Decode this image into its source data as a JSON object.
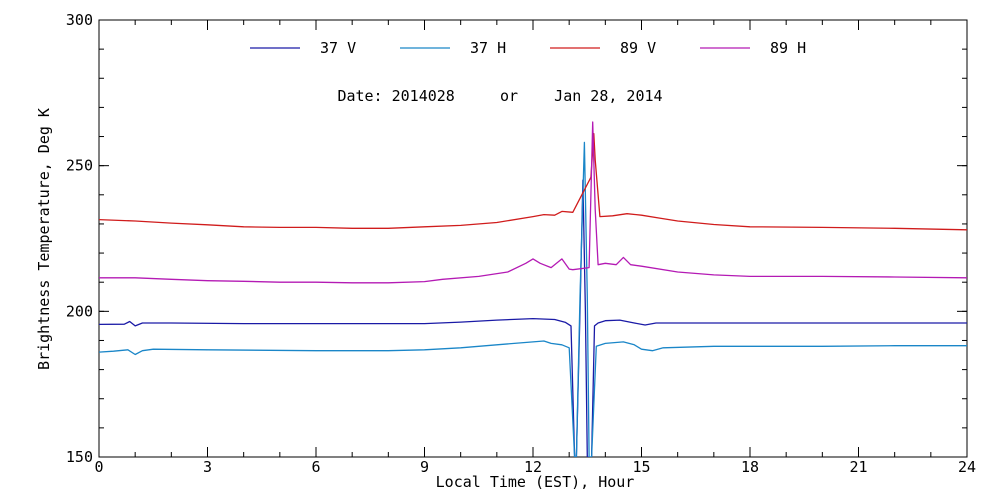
{
  "chart_data": {
    "type": "line",
    "title": "Date: 2014028     or    Jan 28, 2014",
    "xlabel": "Local Time (EST), Hour",
    "ylabel": "Brightness Temperature, Deg K",
    "xlim": [
      0,
      24
    ],
    "ylim": [
      150,
      300
    ],
    "xticks": [
      0,
      3,
      6,
      9,
      12,
      15,
      18,
      21,
      24
    ],
    "yticks": [
      150,
      200,
      250,
      300
    ],
    "x_minor_step": 1,
    "y_minor_step": 10,
    "grid": false,
    "legend_position": "top",
    "series": [
      {
        "name": "37 V",
        "color": "#1a1aa6",
        "points": [
          [
            0,
            195.5
          ],
          [
            0.7,
            195.6
          ],
          [
            0.85,
            196.5
          ],
          [
            1.0,
            195.0
          ],
          [
            1.2,
            196.0
          ],
          [
            2,
            196.0
          ],
          [
            4,
            195.8
          ],
          [
            6,
            195.8
          ],
          [
            8,
            195.8
          ],
          [
            9,
            195.8
          ],
          [
            10,
            196.3
          ],
          [
            11,
            197.0
          ],
          [
            12,
            197.5
          ],
          [
            12.6,
            197.2
          ],
          [
            12.9,
            196.2
          ],
          [
            13.05,
            195.0
          ],
          [
            13.15,
            150
          ],
          [
            13.2,
            150
          ],
          [
            13.3,
            200
          ],
          [
            13.38,
            245
          ],
          [
            13.45,
            200
          ],
          [
            13.5,
            150
          ],
          [
            13.62,
            150
          ],
          [
            13.7,
            195.0
          ],
          [
            13.8,
            196.0
          ],
          [
            14.0,
            196.8
          ],
          [
            14.4,
            197.0
          ],
          [
            14.8,
            196.0
          ],
          [
            15.1,
            195.3
          ],
          [
            15.4,
            196.0
          ],
          [
            16,
            196.0
          ],
          [
            18,
            196.0
          ],
          [
            20,
            196.0
          ],
          [
            22,
            196.0
          ],
          [
            24,
            196.0
          ]
        ]
      },
      {
        "name": "37 H",
        "color": "#1a86c8",
        "points": [
          [
            0,
            186.0
          ],
          [
            0.4,
            186.3
          ],
          [
            0.8,
            186.8
          ],
          [
            1.0,
            185.2
          ],
          [
            1.2,
            186.5
          ],
          [
            1.5,
            187.0
          ],
          [
            3,
            186.8
          ],
          [
            6,
            186.5
          ],
          [
            8,
            186.5
          ],
          [
            9,
            186.8
          ],
          [
            10,
            187.5
          ],
          [
            11,
            188.5
          ],
          [
            12,
            189.5
          ],
          [
            12.3,
            189.8
          ],
          [
            12.5,
            189.0
          ],
          [
            12.8,
            188.5
          ],
          [
            13.0,
            187.5
          ],
          [
            13.15,
            150
          ],
          [
            13.2,
            150
          ],
          [
            13.3,
            205
          ],
          [
            13.42,
            258
          ],
          [
            13.5,
            205
          ],
          [
            13.55,
            150
          ],
          [
            13.62,
            150
          ],
          [
            13.75,
            188.0
          ],
          [
            14.0,
            189.0
          ],
          [
            14.5,
            189.5
          ],
          [
            14.8,
            188.5
          ],
          [
            15.0,
            187.0
          ],
          [
            15.3,
            186.5
          ],
          [
            15.6,
            187.5
          ],
          [
            17,
            188.0
          ],
          [
            20,
            188.0
          ],
          [
            22,
            188.2
          ],
          [
            24,
            188.2
          ]
        ]
      },
      {
        "name": "89 V",
        "color": "#d01c1c",
        "points": [
          [
            0,
            231.5
          ],
          [
            1,
            231.0
          ],
          [
            2,
            230.3
          ],
          [
            3,
            229.7
          ],
          [
            4,
            229.0
          ],
          [
            5,
            228.8
          ],
          [
            6,
            228.8
          ],
          [
            7,
            228.5
          ],
          [
            8,
            228.5
          ],
          [
            9,
            229.0
          ],
          [
            10,
            229.5
          ],
          [
            11,
            230.5
          ],
          [
            12,
            232.5
          ],
          [
            12.3,
            233.2
          ],
          [
            12.6,
            233.0
          ],
          [
            12.8,
            234.3
          ],
          [
            13.1,
            234.0
          ],
          [
            13.6,
            246
          ],
          [
            13.68,
            261
          ],
          [
            13.72,
            252
          ],
          [
            13.85,
            232.5
          ],
          [
            14.2,
            232.8
          ],
          [
            14.6,
            233.5
          ],
          [
            15.0,
            233.0
          ],
          [
            15.5,
            232.0
          ],
          [
            16,
            231.0
          ],
          [
            17,
            229.8
          ],
          [
            18,
            229.0
          ],
          [
            20,
            228.8
          ],
          [
            22,
            228.5
          ],
          [
            24,
            228.0
          ]
        ]
      },
      {
        "name": "89 H",
        "color": "#b41ab4",
        "points": [
          [
            0,
            211.5
          ],
          [
            1,
            211.5
          ],
          [
            2,
            211.0
          ],
          [
            3,
            210.5
          ],
          [
            4,
            210.3
          ],
          [
            5,
            210.0
          ],
          [
            6,
            210.0
          ],
          [
            7,
            209.8
          ],
          [
            8,
            209.8
          ],
          [
            9,
            210.2
          ],
          [
            9.5,
            211.0
          ],
          [
            10.5,
            212.0
          ],
          [
            11.3,
            213.5
          ],
          [
            11.8,
            216.5
          ],
          [
            12.0,
            218.0
          ],
          [
            12.2,
            216.5
          ],
          [
            12.5,
            215.0
          ],
          [
            12.8,
            218.0
          ],
          [
            13.0,
            214.5
          ],
          [
            13.1,
            214.3
          ],
          [
            13.55,
            215
          ],
          [
            13.65,
            265
          ],
          [
            13.72,
            235
          ],
          [
            13.8,
            216
          ],
          [
            14.0,
            216.5
          ],
          [
            14.3,
            216.0
          ],
          [
            14.5,
            218.5
          ],
          [
            14.7,
            216.0
          ],
          [
            15.0,
            215.5
          ],
          [
            16,
            213.5
          ],
          [
            17,
            212.5
          ],
          [
            18,
            212.0
          ],
          [
            20,
            212.0
          ],
          [
            22,
            211.8
          ],
          [
            24,
            211.5
          ]
        ]
      }
    ]
  }
}
